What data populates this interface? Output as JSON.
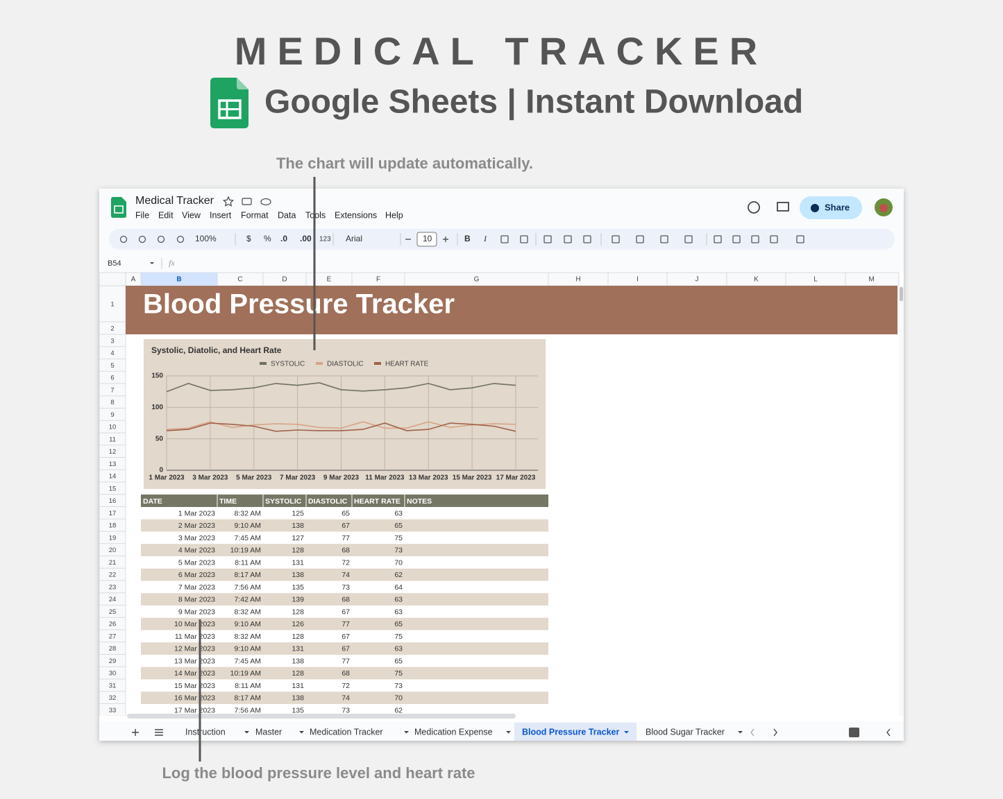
{
  "header": {
    "title": "MEDICAL TRACKER",
    "subtitle": "Google Sheets | Instant Download"
  },
  "annotations": {
    "top": "The chart will update automatically.",
    "bottom": "Log the blood pressure level and heart rate"
  },
  "app": {
    "doc_title": "Medical Tracker",
    "menu": [
      "File",
      "Edit",
      "View",
      "Insert",
      "Format",
      "Data",
      "Tools",
      "Extensions",
      "Help"
    ],
    "share": "Share",
    "toolbar": [
      "100%",
      "$",
      "%",
      ".0",
      ".00",
      "123",
      "Arial",
      "10",
      "B",
      "I"
    ],
    "cell_ref": "B54",
    "fx": "fx",
    "columns": [
      "A",
      "B",
      "C",
      "D",
      "E",
      "F",
      "G",
      "H",
      "I",
      "J",
      "K",
      "L",
      "M"
    ],
    "rows": [
      1,
      2,
      3,
      4,
      5,
      6,
      7,
      8,
      9,
      10,
      11,
      12,
      13,
      14,
      15,
      16,
      17,
      18,
      19,
      20,
      21,
      22,
      23,
      24,
      25,
      26,
      27,
      28,
      29,
      30,
      31,
      32,
      33
    ],
    "tabs": [
      "Instruction",
      "Master",
      "Medication Tracker",
      "Medication Expense",
      "Blood Pressure Tracker",
      "Blood Sugar Tracker"
    ]
  },
  "sheet_title": "Blood Pressure Tracker",
  "chart_data": {
    "type": "line",
    "title": "Systolic, Diatolic, and Heart Rate",
    "categories": [
      "1 Mar 2023",
      null,
      "3 Mar 2023",
      null,
      "5 Mar 2023",
      null,
      "7 Mar 2023",
      null,
      "9 Mar 2023",
      null,
      "11 Mar 2023",
      null,
      "13 Mar 2023",
      null,
      "15 Mar 2023",
      null,
      "17 Mar 2023"
    ],
    "series": [
      {
        "name": "SYSTOLIC",
        "color": "#707064",
        "values": [
          125,
          138,
          127,
          128,
          131,
          138,
          135,
          139,
          128,
          126,
          128,
          131,
          138,
          128,
          131,
          138,
          135
        ]
      },
      {
        "name": "DIASTOLIC",
        "color": "#d8a487",
        "values": [
          65,
          67,
          77,
          68,
          72,
          74,
          73,
          68,
          67,
          77,
          67,
          67,
          77,
          68,
          72,
          74,
          73
        ]
      },
      {
        "name": "HEART RATE",
        "color": "#a0614a",
        "values": [
          63,
          65,
          75,
          73,
          70,
          62,
          64,
          63,
          63,
          65,
          75,
          63,
          65,
          75,
          73,
          70,
          62
        ]
      }
    ],
    "ylim": [
      0,
      150
    ],
    "yticks": [
      0,
      50,
      100,
      150
    ],
    "grid": true
  },
  "table": {
    "headers": [
      "DATE",
      "TIME",
      "SYSTOLIC",
      "DIASTOLIC",
      "HEART RATE",
      "NOTES"
    ],
    "rows": [
      [
        "1 Mar 2023",
        "8:32 AM",
        125,
        65,
        63
      ],
      [
        "2 Mar 2023",
        "9:10 AM",
        138,
        67,
        65
      ],
      [
        "3 Mar 2023",
        "7:45 AM",
        127,
        77,
        75
      ],
      [
        "4 Mar 2023",
        "10:19 AM",
        128,
        68,
        73
      ],
      [
        "5 Mar 2023",
        "8:11 AM",
        131,
        72,
        70
      ],
      [
        "6 Mar 2023",
        "8:17 AM",
        138,
        74,
        62
      ],
      [
        "7 Mar 2023",
        "7:56 AM",
        135,
        73,
        64
      ],
      [
        "8 Mar 2023",
        "7:42 AM",
        139,
        68,
        63
      ],
      [
        "9 Mar 2023",
        "8:32 AM",
        128,
        67,
        63
      ],
      [
        "10 Mar 2023",
        "9:10 AM",
        126,
        77,
        65
      ],
      [
        "11 Mar 2023",
        "8:32 AM",
        128,
        67,
        75
      ],
      [
        "12 Mar 2023",
        "9:10 AM",
        131,
        67,
        63
      ],
      [
        "13 Mar 2023",
        "7:45 AM",
        138,
        77,
        65
      ],
      [
        "14 Mar 2023",
        "10:19 AM",
        128,
        68,
        75
      ],
      [
        "15 Mar 2023",
        "8:11 AM",
        131,
        72,
        73
      ],
      [
        "16 Mar 2023",
        "8:17 AM",
        138,
        74,
        70
      ],
      [
        "17 Mar 2023",
        "7:56 AM",
        135,
        73,
        62
      ]
    ]
  }
}
